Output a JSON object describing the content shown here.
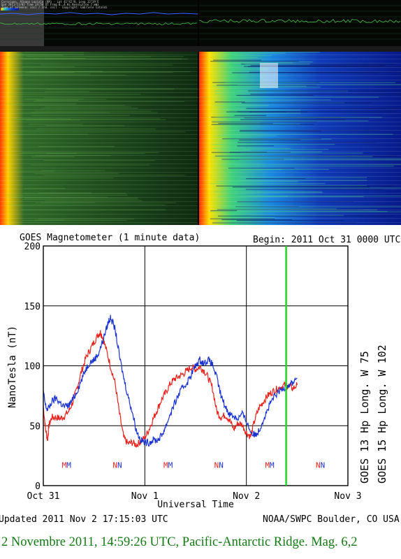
{
  "colors": {
    "goes13": "#e8221b",
    "goes15": "#1a33d1",
    "marker": "#22d622",
    "caption": "#127a12",
    "spectrogram_left_base": "#0d2c10",
    "spectrogram_right_base": "#0a1c9e"
  },
  "spectrogram_header": {
    "line1": "Carovigno, Albano Laziale (RM) - Lat 41°42'N, Long 12°39'E",
    "line2": "Upd 2011/11/02 Time 14:59 UT Freq 0..4 Hz Resolution 7 mHz",
    "line3": "Type of antenna: coil / Ind. coil - Copyright: Gabriele Cataldi"
  },
  "chart_data": {
    "type": "line",
    "title": "GOES Magnetometer (1 minute data)",
    "begin_text": "Begin:  2011 Oct 31 0000 UTC",
    "xlabel": "Universal Time",
    "ylabel": "NanoTesla (nT)",
    "x_tick_labels": [
      "Oct 31",
      "Nov 1",
      "Nov 2",
      "Nov 3"
    ],
    "x_range_hours": [
      0,
      72
    ],
    "ylim": [
      0,
      200
    ],
    "y_ticks": [
      0,
      50,
      100,
      150,
      200
    ],
    "grid": true,
    "marker_hour": 57.4,
    "series": [
      {
        "name": "GOES 13 Hp",
        "side_label": "GOES 13 Hp   Long. W 75",
        "color": "#e8221b",
        "x_hours": [
          0,
          0.5,
          1,
          1.3,
          2,
          3,
          4,
          5,
          6,
          7,
          8,
          9,
          10,
          11,
          12,
          13,
          13.5,
          14,
          15,
          16,
          17,
          18,
          19,
          20,
          21,
          22,
          23,
          24,
          25,
          26,
          27,
          28,
          29,
          30,
          31,
          32,
          33,
          34,
          35,
          36,
          37,
          38,
          39,
          40,
          41,
          42,
          43,
          44,
          45,
          46,
          47,
          48,
          49,
          50,
          51,
          52,
          53,
          54,
          55,
          56,
          57,
          58,
          59,
          60
        ],
        "values": [
          66,
          48,
          38,
          50,
          57,
          57,
          56,
          58,
          62,
          70,
          82,
          95,
          106,
          113,
          120,
          126,
          128,
          124,
          112,
          98,
          85,
          60,
          40,
          35,
          36,
          34,
          37,
          40,
          47,
          56,
          64,
          72,
          78,
          85,
          89,
          91,
          93,
          96,
          99,
          97,
          99,
          96,
          90,
          81,
          62,
          57,
          59,
          55,
          47,
          52,
          51,
          44,
          41,
          55,
          65,
          70,
          75,
          78,
          80,
          82,
          84,
          83,
          81,
          84
        ]
      },
      {
        "name": "GOES 15 Hp",
        "side_label": "GOES 15 Hp   Long. W 102",
        "color": "#1a33d1",
        "x_hours": [
          0,
          0.5,
          1,
          2,
          3,
          4,
          5,
          6,
          7,
          8,
          9,
          10,
          11,
          12,
          13,
          14,
          15,
          15.5,
          16,
          17,
          18,
          19,
          20,
          21,
          22,
          23,
          24,
          25,
          26,
          27,
          28,
          29,
          30,
          31,
          32,
          33,
          34,
          35,
          36,
          37,
          38,
          39,
          40,
          41,
          42,
          43,
          44,
          45,
          46,
          47,
          48,
          49,
          50,
          51,
          52,
          53,
          54,
          55,
          56,
          57,
          58,
          59,
          60
        ],
        "values": [
          78,
          67,
          63,
          70,
          73,
          69,
          66,
          67,
          72,
          79,
          88,
          97,
          103,
          105,
          110,
          120,
          132,
          138,
          140,
          130,
          108,
          90,
          75,
          62,
          46,
          38,
          36,
          36,
          38,
          38,
          42,
          50,
          60,
          68,
          76,
          82,
          86,
          93,
          100,
          105,
          102,
          105,
          101,
          90,
          75,
          66,
          60,
          58,
          56,
          60,
          54,
          45,
          42,
          46,
          55,
          63,
          71,
          76,
          79,
          82,
          84,
          86,
          90
        ]
      }
    ],
    "mm_labels": [
      {
        "text": "MM",
        "hour": 5.5
      },
      {
        "text": "NN",
        "hour": 17.5
      },
      {
        "text": "MM",
        "hour": 29.5
      },
      {
        "text": "NN",
        "hour": 41.5
      },
      {
        "text": "MM",
        "hour": 53.5
      },
      {
        "text": "NN",
        "hour": 65.5
      }
    ]
  },
  "footer": {
    "updated": "Updated 2011 Nov  2 17:15:03 UTC",
    "source": "NOAA/SWPC Boulder, CO USA"
  },
  "caption": "2 Novembre 2011, 14:59:26 UTC, Pacific-Antarctic Ridge. Mag. 6,2"
}
